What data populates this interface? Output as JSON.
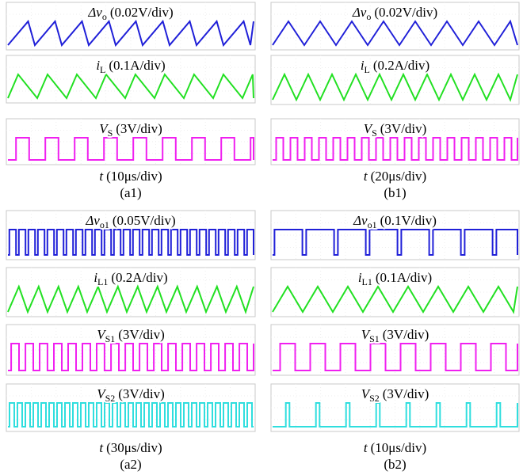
{
  "panels": [
    {
      "traces": [
        {
          "symbol": "Δv",
          "sub": "o",
          "scale": "(0.02V/div)"
        },
        {
          "symbol": "i",
          "sub": "L",
          "scale": "(0.1A/div)"
        },
        {
          "symbol": "V",
          "sub": "S",
          "scale": "(3V/div)"
        }
      ],
      "time": {
        "symbol": "t",
        "scale": "(10μs/div)"
      },
      "caption": "(a1)"
    },
    {
      "traces": [
        {
          "symbol": "Δv",
          "sub": "o",
          "scale": "(0.02V/div)"
        },
        {
          "symbol": "i",
          "sub": "L",
          "scale": "(0.2A/div)"
        },
        {
          "symbol": "V",
          "sub": "S",
          "scale": "(3V/div)"
        }
      ],
      "time": {
        "symbol": "t",
        "scale": "(20μs/div)"
      },
      "caption": "(b1)"
    },
    {
      "traces": [
        {
          "symbol": "Δv",
          "sub": "o1",
          "scale": "(0.05V/div)"
        },
        {
          "symbol": "i",
          "sub": "L1",
          "scale": "(0.2A/div)"
        },
        {
          "symbol": "V",
          "sub": "S1",
          "scale": "(3V/div)"
        },
        {
          "symbol": "V",
          "sub": "S2",
          "scale": "(3V/div)"
        }
      ],
      "time": {
        "symbol": "t",
        "scale": "(30μs/div)"
      },
      "caption": "(a2)"
    },
    {
      "traces": [
        {
          "symbol": "Δv",
          "sub": "o1",
          "scale": "(0.1V/div)"
        },
        {
          "symbol": "i",
          "sub": "L1",
          "scale": "(0.1A/div)"
        },
        {
          "symbol": "V",
          "sub": "S1",
          "scale": "(3V/div)"
        },
        {
          "symbol": "V",
          "sub": "S2",
          "scale": "(3V/div)"
        }
      ],
      "time": {
        "symbol": "t",
        "scale": "(10μs/div)"
      },
      "caption": "(b2)"
    }
  ]
}
